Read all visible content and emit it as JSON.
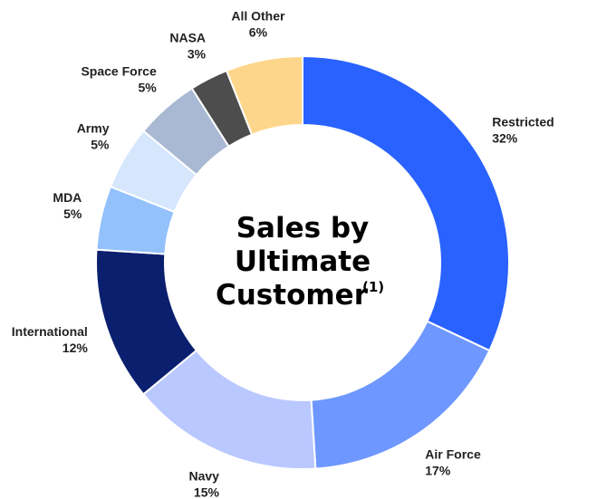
{
  "chart_data": {
    "type": "donut",
    "title_lines": [
      "Sales by",
      "Ultimate",
      "Customer"
    ],
    "title_superscript": "(1)",
    "categories": [
      "Restricted",
      "Air Force",
      "Navy",
      "International",
      "MDA",
      "Army",
      "Space Force",
      "NASA",
      "All Other"
    ],
    "values": [
      32,
      17,
      15,
      12,
      5,
      5,
      5,
      3,
      6
    ],
    "value_labels": [
      "32%",
      "17%",
      "15%",
      "12%",
      "5%",
      "5%",
      "5%",
      "3%",
      "6%"
    ],
    "colors": [
      "#2962ff",
      "#6e98ff",
      "#b9c8ff",
      "#0a1f6e",
      "#93c1fb",
      "#d5e6fd",
      "#a9b9d3",
      "#4d4d4d",
      "#fdd68b"
    ]
  }
}
